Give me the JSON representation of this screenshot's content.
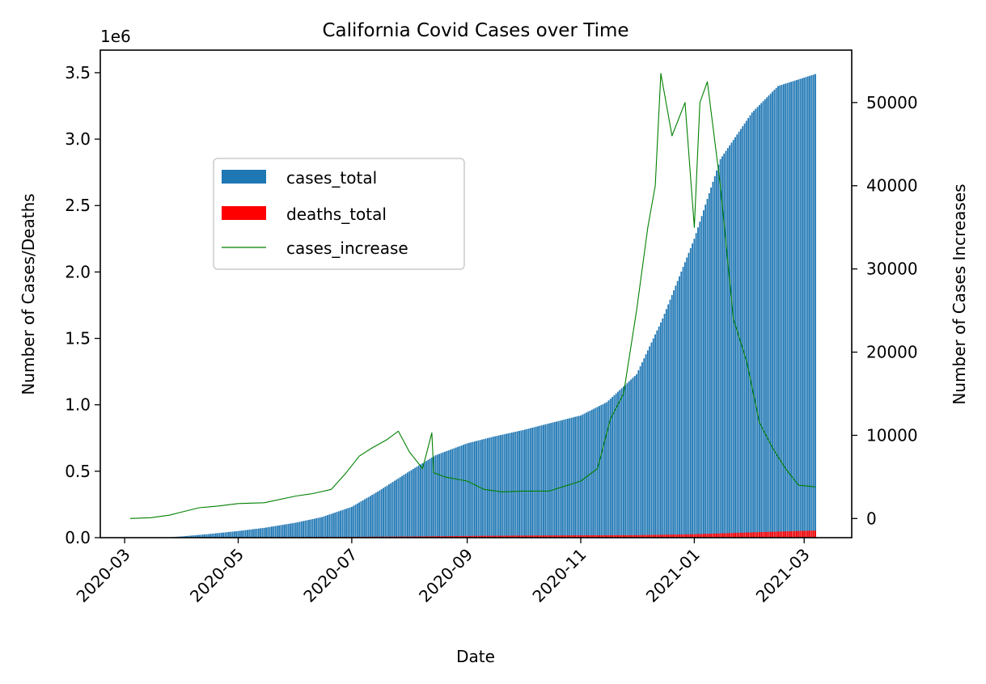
{
  "chart_data": {
    "type": "bar",
    "title": "California Covid Cases over Time",
    "xlabel": "Date",
    "ylabel": "Number of Cases/Deaths",
    "y2label": "Number of Cases Increases",
    "y_offset_text": "1e6",
    "x_range": [
      "2020-03-04",
      "2021-03-07"
    ],
    "ylim": [
      0,
      3.67
    ],
    "y_scale_note": "left axis values in millions (1e6)",
    "y2lim": [
      -2300,
      56300
    ],
    "y_ticks": [
      "0.0",
      "0.5",
      "1.0",
      "1.5",
      "2.0",
      "2.5",
      "3.0",
      "3.5"
    ],
    "y_tick_values": [
      0,
      0.5,
      1.0,
      1.5,
      2.0,
      2.5,
      3.0,
      3.5
    ],
    "y2_ticks": [
      "0",
      "10000",
      "20000",
      "30000",
      "40000",
      "50000"
    ],
    "y2_tick_values": [
      0,
      10000,
      20000,
      30000,
      40000,
      50000
    ],
    "x_ticks": [
      "2020-03",
      "2020-05",
      "2020-07",
      "2020-09",
      "2020-11",
      "2021-01",
      "2021-03"
    ],
    "x_tick_dates": [
      "2020-03-01",
      "2020-05-01",
      "2020-07-01",
      "2020-09-01",
      "2020-11-01",
      "2021-01-01",
      "2021-03-01"
    ],
    "grid": false,
    "legend_position": "upper left, inset",
    "colors": {
      "cases_total": "#1f77b4",
      "deaths_total": "#ff0000",
      "cases_increase": "#008000"
    },
    "series": [
      {
        "name": "cases_total",
        "kind": "bar",
        "axis": "left",
        "points": [
          [
            "2020-03-04",
            0.0
          ],
          [
            "2020-03-25",
            0.003
          ],
          [
            "2020-04-01",
            0.01
          ],
          [
            "2020-04-15",
            0.027
          ],
          [
            "2020-05-01",
            0.05
          ],
          [
            "2020-05-15",
            0.074
          ],
          [
            "2020-06-01",
            0.113
          ],
          [
            "2020-06-15",
            0.155
          ],
          [
            "2020-07-01",
            0.232
          ],
          [
            "2020-07-15",
            0.347
          ],
          [
            "2020-08-01",
            0.5
          ],
          [
            "2020-08-15",
            0.62
          ],
          [
            "2020-09-01",
            0.71
          ],
          [
            "2020-09-15",
            0.76
          ],
          [
            "2020-10-01",
            0.81
          ],
          [
            "2020-10-15",
            0.86
          ],
          [
            "2020-11-01",
            0.92
          ],
          [
            "2020-11-15",
            1.02
          ],
          [
            "2020-12-01",
            1.23
          ],
          [
            "2020-12-15",
            1.65
          ],
          [
            "2021-01-01",
            2.25
          ],
          [
            "2021-01-15",
            2.85
          ],
          [
            "2021-02-01",
            3.2
          ],
          [
            "2021-02-15",
            3.4
          ],
          [
            "2021-03-07",
            3.49
          ]
        ]
      },
      {
        "name": "deaths_total",
        "kind": "bar",
        "axis": "left",
        "points": [
          [
            "2020-03-04",
            0.0
          ],
          [
            "2020-04-15",
            0.0008
          ],
          [
            "2020-06-01",
            0.004
          ],
          [
            "2020-07-01",
            0.006
          ],
          [
            "2020-08-01",
            0.009
          ],
          [
            "2020-09-01",
            0.013
          ],
          [
            "2020-10-01",
            0.016
          ],
          [
            "2020-11-01",
            0.018
          ],
          [
            "2020-12-01",
            0.019
          ],
          [
            "2021-01-01",
            0.026
          ],
          [
            "2021-02-01",
            0.04
          ],
          [
            "2021-03-07",
            0.054
          ]
        ]
      },
      {
        "name": "cases_increase",
        "kind": "line",
        "axis": "right",
        "points": [
          [
            "2020-03-04",
            0
          ],
          [
            "2020-03-15",
            100
          ],
          [
            "2020-03-25",
            400
          ],
          [
            "2020-04-01",
            800
          ],
          [
            "2020-04-10",
            1300
          ],
          [
            "2020-04-20",
            1500
          ],
          [
            "2020-05-01",
            1800
          ],
          [
            "2020-05-15",
            1900
          ],
          [
            "2020-06-01",
            2700
          ],
          [
            "2020-06-10",
            3000
          ],
          [
            "2020-06-20",
            3500
          ],
          [
            "2020-06-28",
            5500
          ],
          [
            "2020-07-05",
            7500
          ],
          [
            "2020-07-12",
            8500
          ],
          [
            "2020-07-20",
            9500
          ],
          [
            "2020-07-26",
            10500
          ],
          [
            "2020-08-01",
            8000
          ],
          [
            "2020-08-08",
            6000
          ],
          [
            "2020-08-13",
            10300
          ],
          [
            "2020-08-14",
            5500
          ],
          [
            "2020-08-20",
            5000
          ],
          [
            "2020-09-01",
            4500
          ],
          [
            "2020-09-10",
            3500
          ],
          [
            "2020-09-20",
            3200
          ],
          [
            "2020-10-01",
            3300
          ],
          [
            "2020-10-15",
            3300
          ],
          [
            "2020-10-25",
            4000
          ],
          [
            "2020-11-01",
            4500
          ],
          [
            "2020-11-10",
            6000
          ],
          [
            "2020-11-17",
            12000
          ],
          [
            "2020-11-24",
            15000
          ],
          [
            "2020-12-01",
            25000
          ],
          [
            "2020-12-07",
            35000
          ],
          [
            "2020-12-11",
            40000
          ],
          [
            "2020-12-14",
            53500
          ],
          [
            "2020-12-20",
            46000
          ],
          [
            "2020-12-27",
            50000
          ],
          [
            "2021-01-01",
            35000
          ],
          [
            "2021-01-04",
            50000
          ],
          [
            "2021-01-08",
            52500
          ],
          [
            "2021-01-15",
            40000
          ],
          [
            "2021-01-22",
            24000
          ],
          [
            "2021-01-29",
            19000
          ],
          [
            "2021-02-05",
            11500
          ],
          [
            "2021-02-12",
            8500
          ],
          [
            "2021-02-19",
            6000
          ],
          [
            "2021-02-26",
            4000
          ],
          [
            "2021-03-07",
            3800
          ]
        ]
      }
    ]
  }
}
